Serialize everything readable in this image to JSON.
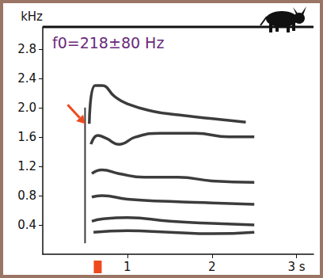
{
  "chart_data": {
    "type": "line",
    "annotation": "f0=218±80 Hz",
    "y_label": "kHz",
    "color": "#1a1a1a",
    "grid": false,
    "series": [
      {
        "x": [
          0.5,
          0.5
        ],
        "values": [
          0.15,
          2.0
        ]
      },
      {
        "x": [
          0.55,
          0.62,
          0.7,
          0.85,
          1.0,
          1.3,
          1.6,
          2.0,
          2.4
        ],
        "values": [
          1.78,
          2.3,
          2.3,
          2.15,
          2.05,
          1.95,
          1.9,
          1.85,
          1.8
        ]
      },
      {
        "x": [
          0.57,
          0.65,
          0.75,
          0.9,
          1.1,
          1.4,
          1.8,
          2.2,
          2.5
        ],
        "values": [
          1.5,
          1.62,
          1.58,
          1.5,
          1.6,
          1.65,
          1.65,
          1.6,
          1.6
        ]
      },
      {
        "x": [
          0.58,
          0.7,
          0.9,
          1.2,
          1.6,
          2.0,
          2.5
        ],
        "values": [
          1.1,
          1.15,
          1.1,
          1.05,
          1.05,
          1.0,
          0.98
        ]
      },
      {
        "x": [
          0.58,
          0.7,
          1.0,
          1.5,
          2.0,
          2.5
        ],
        "values": [
          0.78,
          0.8,
          0.75,
          0.72,
          0.7,
          0.68
        ]
      },
      {
        "x": [
          0.58,
          0.7,
          1.0,
          1.5,
          2.0,
          2.5
        ],
        "values": [
          0.45,
          0.48,
          0.5,
          0.45,
          0.42,
          0.4
        ]
      },
      {
        "x": [
          0.6,
          1.0,
          1.5,
          2.0,
          2.5
        ],
        "values": [
          0.3,
          0.32,
          0.3,
          0.28,
          0.3
        ]
      }
    ],
    "xlim": [
      0,
      3.2
    ],
    "ylim": [
      0,
      3.1
    ],
    "xticks": [
      1,
      2,
      {
        "value": 3,
        "label": "3 s"
      }
    ],
    "yticks": [
      0.4,
      0.8,
      1.2,
      1.6,
      {
        "value": 2,
        "label": "2.0"
      },
      2.4,
      2.8
    ],
    "arrow": {
      "x": 0.5,
      "y": 1.78
    },
    "time_mark": 0.65
  }
}
